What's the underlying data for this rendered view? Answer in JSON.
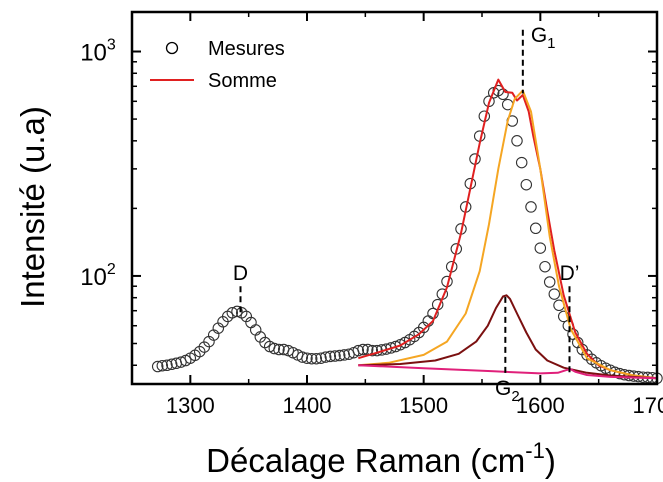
{
  "chart_data": {
    "type": "line",
    "xlabel": "Décalage Raman (cm",
    "xlabel_sup": "-1",
    "xlabel_tail": ")",
    "ylabel": "Intensité (u.a)",
    "xlim": [
      1250,
      1700
    ],
    "ylim": [
      33,
      1500
    ],
    "yscale": "log",
    "x_ticks": [
      1300,
      1400,
      1500,
      1600,
      1700
    ],
    "x_tick_labels": [
      "1300",
      "1400",
      "1500",
      "1600",
      "1700"
    ],
    "y_ticks": [
      100,
      1000
    ],
    "y_tick_labels": [
      {
        "base": "10",
        "exp": "2"
      },
      {
        "base": "10",
        "exp": "3"
      }
    ],
    "legend": {
      "position": "top-left",
      "entries": [
        {
          "label": "Mesures",
          "marker": "open-circle",
          "color": "#000000"
        },
        {
          "label": "Somme",
          "marker": "line",
          "color": "#e02020"
        }
      ]
    },
    "annotations": [
      {
        "label": "D",
        "x": 1343,
        "y_top": 90,
        "y_bottom": 67
      },
      {
        "label": "G",
        "sub": "1",
        "x": 1585,
        "y_top": 1250,
        "y_bottom": 650
      },
      {
        "label": "G",
        "sub": "2",
        "x": 1570,
        "y_top": 37,
        "y_bottom": 82,
        "label_below": true
      },
      {
        "label": "D’",
        "x": 1625,
        "y_top": 90,
        "y_bottom": 37
      }
    ],
    "series": [
      {
        "name": "Mesures",
        "style": "open-circle",
        "color": "#333333",
        "x": [
          1272,
          1276,
          1280,
          1284,
          1288,
          1292,
          1296,
          1300,
          1304,
          1308,
          1312,
          1316,
          1320,
          1324,
          1328,
          1332,
          1336,
          1340,
          1344,
          1348,
          1352,
          1356,
          1360,
          1364,
          1368,
          1372,
          1376,
          1380,
          1384,
          1388,
          1392,
          1396,
          1400,
          1404,
          1408,
          1412,
          1416,
          1420,
          1424,
          1428,
          1432,
          1436,
          1440,
          1444,
          1448,
          1452,
          1456,
          1460,
          1464,
          1468,
          1472,
          1476,
          1480,
          1484,
          1488,
          1492,
          1496,
          1500,
          1504,
          1508,
          1512,
          1516,
          1520,
          1524,
          1528,
          1532,
          1536,
          1540,
          1544,
          1548,
          1552,
          1556,
          1560,
          1564,
          1568,
          1572,
          1576,
          1580,
          1584,
          1588,
          1592,
          1596,
          1600,
          1604,
          1608,
          1612,
          1616,
          1620,
          1624,
          1628,
          1632,
          1636,
          1640,
          1644,
          1648,
          1652,
          1656,
          1660,
          1664,
          1668,
          1672,
          1676,
          1680,
          1684,
          1688,
          1692,
          1696,
          1700
        ],
        "y": [
          39.5,
          39.8,
          40.0,
          40.4,
          40.8,
          41.3,
          42.0,
          43.0,
          44.3,
          46.0,
          48.2,
          51.0,
          54.5,
          58.5,
          62.5,
          66.0,
          68.5,
          69.5,
          68.5,
          66.0,
          62.0,
          57.5,
          53.5,
          50.5,
          48.5,
          47.5,
          47.0,
          47.0,
          46.5,
          45.5,
          44.5,
          43.5,
          43.0,
          42.8,
          42.8,
          43.0,
          43.5,
          43.8,
          44.0,
          44.2,
          44.5,
          44.8,
          45.5,
          46.5,
          47.0,
          47.0,
          46.5,
          46.5,
          46.8,
          47.2,
          47.8,
          48.5,
          49.4,
          50.5,
          52.0,
          53.8,
          56.0,
          59.0,
          63.0,
          68.0,
          74.5,
          83.0,
          94.5,
          110,
          132,
          162,
          203,
          258,
          332,
          420,
          515,
          600,
          655,
          670,
          645,
          580,
          490,
          400,
          320,
          255,
          203,
          163,
          133,
          110,
          94,
          83,
          74,
          66,
          60,
          55,
          50.5,
          47.0,
          44.5,
          42.5,
          41.0,
          39.8,
          38.8,
          38.0,
          37.2,
          36.7,
          36.3,
          36.0,
          35.8,
          35.6,
          35.4,
          35.3,
          35.2,
          35.0
        ]
      },
      {
        "name": "Somme",
        "style": "line",
        "color": "#e02020",
        "x": [
          1444,
          1460,
          1480,
          1496,
          1508,
          1520,
          1532,
          1540,
          1548,
          1556,
          1564,
          1570,
          1576,
          1580,
          1585,
          1590,
          1594,
          1600,
          1606,
          1612,
          1620,
          1630,
          1640,
          1650,
          1660,
          1680,
          1700
        ],
        "y": [
          43,
          45.5,
          49,
          55,
          63,
          89,
          155,
          245,
          390,
          590,
          750,
          660,
          655,
          605,
          640,
          540,
          420,
          300,
          195,
          130,
          82,
          56,
          45,
          40,
          38,
          36,
          35
        ]
      },
      {
        "style": "line",
        "color": "#f5a623",
        "x": [
          1444,
          1470,
          1500,
          1520,
          1536,
          1548,
          1556,
          1564,
          1572,
          1578,
          1585,
          1592,
          1600,
          1608,
          1616,
          1626,
          1640,
          1660,
          1680,
          1700
        ],
        "y": [
          40,
          41,
          44.5,
          51,
          68,
          105,
          170,
          300,
          490,
          615,
          670,
          540,
          300,
          150,
          90,
          58,
          43,
          38,
          36,
          35
        ]
      },
      {
        "style": "line",
        "color": "#7b1010",
        "x": [
          1444,
          1480,
          1510,
          1530,
          1545,
          1555,
          1562,
          1568,
          1571,
          1574,
          1580,
          1588,
          1596,
          1606,
          1620,
          1640,
          1660,
          1680,
          1700
        ],
        "y": [
          40,
          40.5,
          42,
          45,
          51,
          60,
          72,
          81,
          82,
          79,
          68,
          56,
          47,
          42,
          39,
          37,
          36,
          35.5,
          35
        ]
      },
      {
        "style": "line",
        "color": "#e0207a",
        "x": [
          1444,
          1500,
          1560,
          1600,
          1615,
          1622,
          1626,
          1630,
          1640,
          1660,
          1700
        ],
        "y": [
          40,
          38.8,
          37.6,
          36.8,
          37.0,
          38.0,
          38.4,
          37.4,
          36.2,
          35.5,
          35
        ]
      }
    ]
  }
}
